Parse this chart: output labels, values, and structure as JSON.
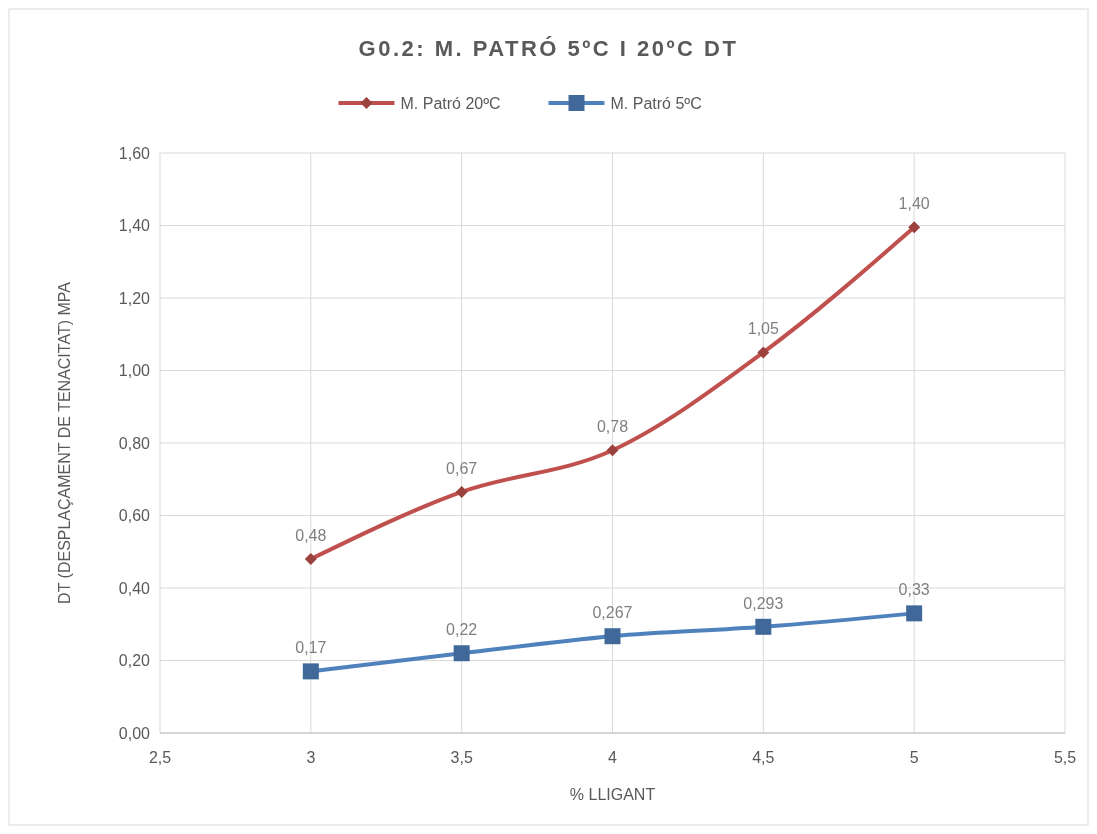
{
  "chart_data": {
    "type": "line",
    "title": "G0.2: M. PATRÓ 5ºC I 20ºC DT",
    "xlabel": "% LLIGANT",
    "ylabel": "DT (DESPLAÇAMENT DE TENACITAT) MPA",
    "x": [
      3,
      3.5,
      4,
      4.5,
      5
    ],
    "series": [
      {
        "name": "M. Patró 20ºC",
        "color": "#c0504d",
        "marker": "diamond",
        "values": [
          0.48,
          0.665,
          0.78,
          1.05,
          1.395
        ],
        "value_labels": [
          "0,48",
          "0,67",
          "0,78",
          "1,05",
          "1,40"
        ]
      },
      {
        "name": "M. Patró 5ºC",
        "color": "#4f81bd",
        "marker": "square",
        "values": [
          0.17,
          0.22,
          0.267,
          0.293,
          0.33
        ],
        "value_labels": [
          "0,17",
          "0,22",
          "0,267",
          "0,293",
          "0,33"
        ]
      }
    ],
    "xlim": [
      2.5,
      5.5
    ],
    "xticks": [
      {
        "value": 2.5,
        "label": "2,5"
      },
      3,
      {
        "value": 3.5,
        "label": "3,5"
      },
      4,
      {
        "value": 4.5,
        "label": "4,5"
      },
      5,
      {
        "value": 5.5,
        "label": "5,5"
      }
    ],
    "ylim": [
      0,
      1.6
    ],
    "yticks": [
      {
        "value": 0,
        "label": "0,00"
      },
      {
        "value": 0.2,
        "label": "0,20"
      },
      {
        "value": 0.4,
        "label": "0,40"
      },
      {
        "value": 0.6,
        "label": "0,60"
      },
      {
        "value": 0.8,
        "label": "0,80"
      },
      {
        "value": 1,
        "label": "1,00"
      },
      {
        "value": 1.2,
        "label": "1,20"
      },
      {
        "value": 1.4,
        "label": "1,40"
      },
      {
        "value": 1.6,
        "label": "1,60"
      }
    ],
    "grid": true,
    "legend": "top",
    "line_style": "solid"
  }
}
